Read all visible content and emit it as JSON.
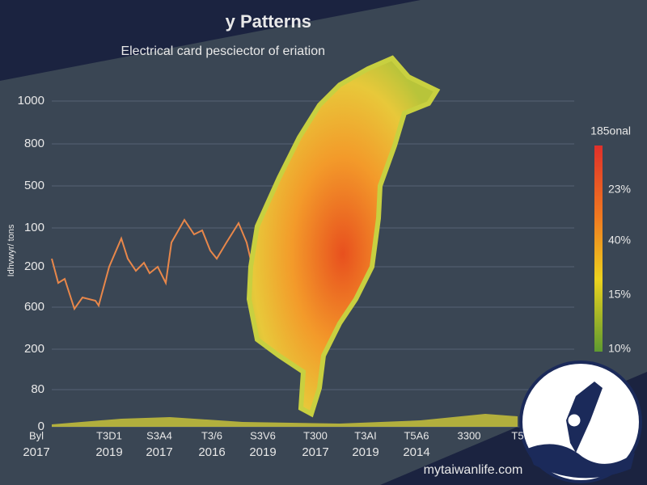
{
  "chart_data": {
    "type": "map",
    "title": "y Patterns",
    "subtitle": "Electrical card pesciector of eriation",
    "y_axis_label": "Idhvwyr/ tons",
    "y_labels": [
      "1000",
      "800",
      "500",
      "100",
      "200",
      "600",
      "200",
      "80",
      "0"
    ],
    "x_labels_top": [
      "Byl",
      "T3D1",
      "S3A4",
      "T3/6",
      "S3V6",
      "T300",
      "T3AI",
      "T5A6",
      "3300",
      "T5"
    ],
    "x_labels_bottom": [
      "2017",
      "2019",
      "2017",
      "2016",
      "2019",
      "2017",
      "2019",
      "2014"
    ],
    "colorbar_labels": [
      "185onal",
      "23%",
      "40%",
      "15%",
      "10%"
    ],
    "watermark": "mytaiwanlife.com"
  }
}
